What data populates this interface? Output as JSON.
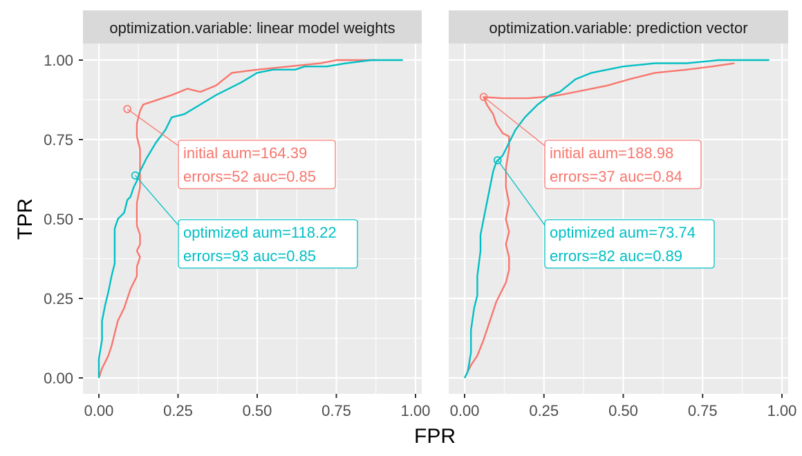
{
  "chart_data": {
    "type": "line",
    "xlabel": "FPR",
    "ylabel": "TPR",
    "xlim": [
      0,
      1
    ],
    "ylim": [
      0,
      1
    ],
    "x_ticks": [
      "0.00",
      "0.25",
      "0.50",
      "0.75",
      "1.00"
    ],
    "y_ticks": [
      "0.00",
      "0.25",
      "0.50",
      "0.75",
      "1.00"
    ],
    "grid": true,
    "colors": {
      "initial": "#F8766D",
      "optimized": "#00BFC4",
      "panel_bg": "#EBEBEB",
      "strip_bg": "#D9D9D9"
    },
    "panels": [
      {
        "strip": "optimization.variable: linear model weights",
        "series": [
          {
            "key": "initial",
            "points": [
              [
                0,
                0
              ],
              [
                0.01,
                0.03
              ],
              [
                0.03,
                0.07
              ],
              [
                0.04,
                0.1
              ],
              [
                0.05,
                0.14
              ],
              [
                0.06,
                0.18
              ],
              [
                0.07,
                0.2
              ],
              [
                0.08,
                0.22
              ],
              [
                0.09,
                0.25
              ],
              [
                0.1,
                0.28
              ],
              [
                0.11,
                0.3
              ],
              [
                0.12,
                0.32
              ],
              [
                0.12,
                0.35
              ],
              [
                0.13,
                0.38
              ],
              [
                0.12,
                0.4
              ],
              [
                0.13,
                0.42
              ],
              [
                0.13,
                0.45
              ],
              [
                0.12,
                0.48
              ],
              [
                0.12,
                0.55
              ],
              [
                0.13,
                0.6
              ],
              [
                0.13,
                0.65
              ],
              [
                0.13,
                0.72
              ],
              [
                0.12,
                0.76
              ],
              [
                0.12,
                0.8
              ],
              [
                0.13,
                0.84
              ],
              [
                0.14,
                0.86
              ],
              [
                0.17,
                0.87
              ],
              [
                0.2,
                0.88
              ],
              [
                0.23,
                0.89
              ],
              [
                0.28,
                0.91
              ],
              [
                0.32,
                0.9
              ],
              [
                0.37,
                0.92
              ],
              [
                0.42,
                0.96
              ],
              [
                0.5,
                0.97
              ],
              [
                0.6,
                0.98
              ],
              [
                0.7,
                0.99
              ],
              [
                0.75,
                1.0
              ],
              [
                0.88,
                1.0
              ]
            ]
          },
          {
            "key": "optimized",
            "points": [
              [
                0,
                0
              ],
              [
                0,
                0.06
              ],
              [
                0.01,
                0.12
              ],
              [
                0.01,
                0.18
              ],
              [
                0.02,
                0.23
              ],
              [
                0.03,
                0.27
              ],
              [
                0.04,
                0.32
              ],
              [
                0.05,
                0.36
              ],
              [
                0.05,
                0.42
              ],
              [
                0.05,
                0.47
              ],
              [
                0.06,
                0.5
              ],
              [
                0.08,
                0.52
              ],
              [
                0.09,
                0.56
              ],
              [
                0.1,
                0.57
              ],
              [
                0.11,
                0.6
              ],
              [
                0.12,
                0.62
              ],
              [
                0.13,
                0.65
              ],
              [
                0.15,
                0.69
              ],
              [
                0.18,
                0.74
              ],
              [
                0.21,
                0.78
              ],
              [
                0.23,
                0.82
              ],
              [
                0.27,
                0.83
              ],
              [
                0.32,
                0.86
              ],
              [
                0.37,
                0.89
              ],
              [
                0.45,
                0.93
              ],
              [
                0.5,
                0.96
              ],
              [
                0.55,
                0.97
              ],
              [
                0.62,
                0.97
              ],
              [
                0.65,
                0.98
              ],
              [
                0.72,
                0.98
              ],
              [
                0.78,
                0.99
              ],
              [
                0.86,
                1.0
              ],
              [
                0.96,
                1.0
              ]
            ]
          }
        ],
        "markers": [
          {
            "key": "initial",
            "x": 0.09,
            "y": 0.846
          },
          {
            "key": "optimized",
            "x": 0.115,
            "y": 0.637
          }
        ],
        "annotations": [
          {
            "key": "initial",
            "lines": [
              "initial aum=164.39",
              "errors=52 auc=0.85"
            ]
          },
          {
            "key": "optimized",
            "lines": [
              "optimized aum=118.22",
              "errors=93 auc=0.85"
            ]
          }
        ]
      },
      {
        "strip": "optimization.variable: prediction vector",
        "series": [
          {
            "key": "initial",
            "points": [
              [
                0,
                0
              ],
              [
                0.02,
                0.04
              ],
              [
                0.04,
                0.07
              ],
              [
                0.06,
                0.12
              ],
              [
                0.07,
                0.15
              ],
              [
                0.08,
                0.18
              ],
              [
                0.09,
                0.21
              ],
              [
                0.1,
                0.24
              ],
              [
                0.11,
                0.26
              ],
              [
                0.12,
                0.28
              ],
              [
                0.13,
                0.3
              ],
              [
                0.14,
                0.34
              ],
              [
                0.14,
                0.38
              ],
              [
                0.13,
                0.42
              ],
              [
                0.14,
                0.46
              ],
              [
                0.13,
                0.5
              ],
              [
                0.14,
                0.55
              ],
              [
                0.13,
                0.6
              ],
              [
                0.13,
                0.66
              ],
              [
                0.14,
                0.72
              ],
              [
                0.14,
                0.76
              ],
              [
                0.12,
                0.77
              ],
              [
                0.1,
                0.8
              ],
              [
                0.09,
                0.83
              ],
              [
                0.07,
                0.86
              ],
              [
                0.06,
                0.884
              ],
              [
                0.12,
                0.88
              ],
              [
                0.2,
                0.88
              ],
              [
                0.26,
                0.885
              ],
              [
                0.3,
                0.89
              ],
              [
                0.35,
                0.9
              ],
              [
                0.4,
                0.91
              ],
              [
                0.45,
                0.92
              ],
              [
                0.52,
                0.94
              ],
              [
                0.6,
                0.96
              ],
              [
                0.7,
                0.97
              ],
              [
                0.78,
                0.98
              ],
              [
                0.85,
                0.99
              ]
            ]
          },
          {
            "key": "optimized",
            "points": [
              [
                0,
                0
              ],
              [
                0.01,
                0.02
              ],
              [
                0.02,
                0.08
              ],
              [
                0.02,
                0.15
              ],
              [
                0.03,
                0.22
              ],
              [
                0.04,
                0.26
              ],
              [
                0.04,
                0.32
              ],
              [
                0.05,
                0.4
              ],
              [
                0.05,
                0.45
              ],
              [
                0.06,
                0.5
              ],
              [
                0.07,
                0.55
              ],
              [
                0.08,
                0.6
              ],
              [
                0.09,
                0.65
              ],
              [
                0.1,
                0.68
              ],
              [
                0.12,
                0.7
              ],
              [
                0.14,
                0.74
              ],
              [
                0.16,
                0.78
              ],
              [
                0.19,
                0.82
              ],
              [
                0.23,
                0.86
              ],
              [
                0.27,
                0.89
              ],
              [
                0.3,
                0.9
              ],
              [
                0.35,
                0.94
              ],
              [
                0.4,
                0.96
              ],
              [
                0.45,
                0.97
              ],
              [
                0.5,
                0.98
              ],
              [
                0.6,
                0.99
              ],
              [
                0.7,
                0.99
              ],
              [
                0.8,
                1.0
              ],
              [
                0.96,
                1.0
              ]
            ]
          }
        ],
        "markers": [
          {
            "key": "initial",
            "x": 0.06,
            "y": 0.884
          },
          {
            "key": "optimized",
            "x": 0.104,
            "y": 0.685
          }
        ],
        "annotations": [
          {
            "key": "initial",
            "lines": [
              "initial aum=188.98",
              "errors=37 auc=0.84"
            ]
          },
          {
            "key": "optimized",
            "lines": [
              "optimized aum=73.74",
              "errors=82 auc=0.89"
            ]
          }
        ]
      }
    ]
  }
}
